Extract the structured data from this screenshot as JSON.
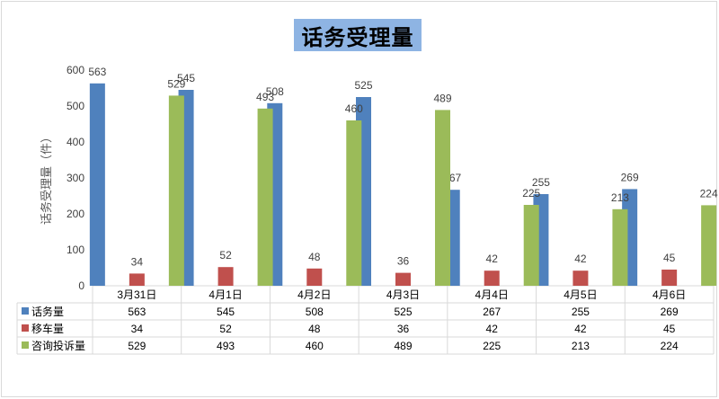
{
  "chart_data": {
    "type": "bar",
    "title": "话务受理量",
    "ylabel": "话务受理量（件）",
    "ylim": [
      0,
      600
    ],
    "yticks": [
      0,
      100,
      200,
      300,
      400,
      500,
      600
    ],
    "grid": false,
    "legend": "data-table",
    "categories": [
      "3月31日",
      "4月1日",
      "4月2日",
      "4月3日",
      "4月4日",
      "4月5日",
      "4月6日"
    ],
    "series": [
      {
        "name": "话务量",
        "color": "#4f81bd",
        "values": [
          563,
          545,
          508,
          525,
          267,
          255,
          269
        ]
      },
      {
        "name": "移车量",
        "color": "#c0504d",
        "values": [
          34,
          52,
          48,
          36,
          42,
          42,
          45
        ]
      },
      {
        "name": "咨询投诉量",
        "color": "#9bbb59",
        "values": [
          529,
          493,
          460,
          489,
          225,
          213,
          224
        ]
      }
    ]
  }
}
